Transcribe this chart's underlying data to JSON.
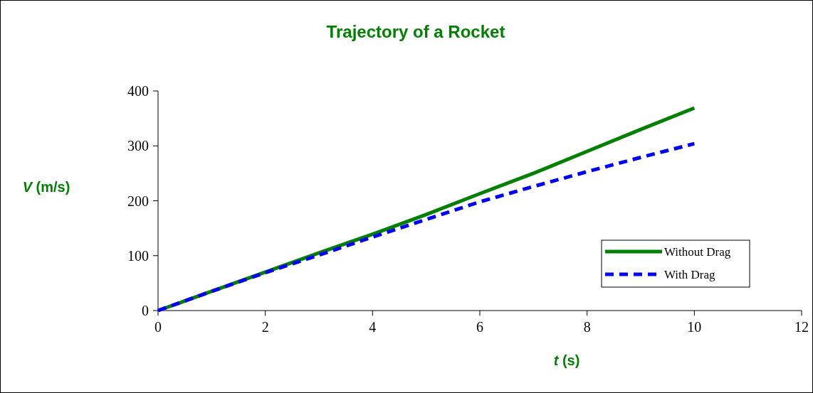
{
  "chart_data": {
    "type": "line",
    "title": "Trajectory of a Rocket",
    "xlabel": "t (s)",
    "ylabel": "V (m/s)",
    "x": [
      0,
      1,
      2,
      3,
      4,
      5,
      6,
      7,
      8,
      9,
      10
    ],
    "series": [
      {
        "name": "Without Drag",
        "color": "#008000",
        "line_style": "solid",
        "values": [
          0,
          35,
          70,
          105,
          139,
          175,
          213,
          250,
          290,
          330,
          369
        ]
      },
      {
        "name": "With Drag",
        "color": "#0000ff",
        "line_style": "dashed",
        "values": [
          0,
          35,
          69,
          101,
          134,
          166,
          198,
          226,
          253,
          279,
          304
        ]
      }
    ],
    "xlim": [
      0,
      12
    ],
    "xticks": [
      0,
      2,
      4,
      6,
      8,
      10,
      12
    ],
    "ylim": [
      0,
      400
    ],
    "yticks": [
      0,
      100,
      200,
      300,
      400
    ],
    "grid": false,
    "legend": "bottom right",
    "marker": "none"
  }
}
